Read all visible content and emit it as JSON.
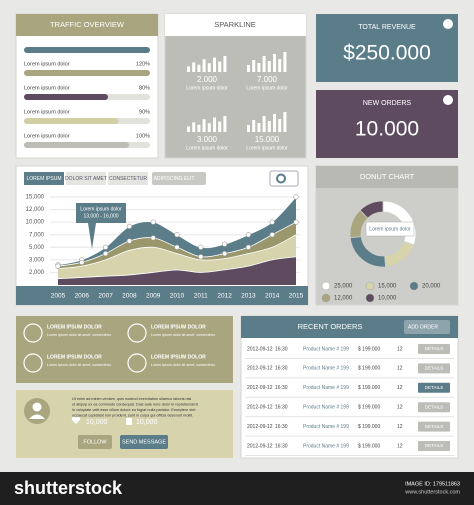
{
  "traffic_overview": {
    "title": "TRAFFIC OVERVIEW",
    "labels": [
      "Lorem ipsum dolor",
      "Lorem ipsum dolor",
      "Lorem ipsum dolor",
      "Lorem ipsum dolor"
    ],
    "values": [
      120,
      80,
      90,
      100
    ],
    "value_labels": [
      "120%",
      "80%",
      "90%",
      "100%"
    ],
    "colors": [
      "#a9a67f",
      "#5e4b60",
      "#d2cfa6",
      "#bdbdb5"
    ]
  },
  "sparkline": {
    "title": "SPARKLINE",
    "items": [
      {
        "value": "2.000",
        "label": "Lorem ipsum dolor"
      },
      {
        "value": "7.000",
        "label": "Lorem ipsum dolor"
      },
      {
        "value": "3.000",
        "label": "Lorem ipsum dolor"
      },
      {
        "value": "15.000",
        "label": "Lorem ipsum dolor"
      }
    ]
  },
  "kpis": [
    {
      "title": "TOTAL REVENUE",
      "value": "$250.000"
    },
    {
      "title": "NEW ORDERS",
      "value": "10.000"
    }
  ],
  "chart_data": [
    {
      "type": "area",
      "tabs": [
        "LOREM IPSUM",
        "DOLOR SIT AMET",
        "CONSECTETUR"
      ],
      "dropdown": "ADIPISCING ELIT",
      "x": [
        2005,
        2006,
        2007,
        2008,
        2009,
        2010,
        2011,
        2012,
        2013,
        2014,
        2015
      ],
      "xlim": [
        2005,
        2015
      ],
      "ylim": [
        1000,
        15000
      ],
      "yticks": [
        {
          "value": 2000,
          "label": "2,000"
        },
        {
          "value": 3000,
          "label": "3,000"
        },
        {
          "value": 5000,
          "label": "5,000"
        },
        {
          "value": 7000,
          "label": "7,000"
        },
        {
          "value": 10000,
          "label": "10,000"
        },
        {
          "value": 12000,
          "label": "12,000"
        },
        {
          "value": 15000,
          "label": "15,000"
        }
      ],
      "grid": true,
      "annotation": {
        "title": "Lorem ipsum dolor",
        "text": "13,000 - 16,000"
      },
      "series": [
        {
          "name": "Teal",
          "color": "#5b7c89",
          "values": [
            2600,
            3000,
            5000,
            9000,
            10000,
            7000,
            5000,
            5500,
            7000,
            10000,
            15000
          ]
        },
        {
          "name": "Olive",
          "color": "#9a976c",
          "values": [
            2500,
            2800,
            4000,
            6000,
            6500,
            5000,
            3500,
            4000,
            5000,
            7000,
            10000
          ]
        },
        {
          "name": "Beige",
          "color": "#d6d3ad",
          "values": [
            2300,
            2500,
            3000,
            4500,
            5000,
            4000,
            3000,
            3200,
            4000,
            5000,
            7000
          ]
        },
        {
          "name": "Purple",
          "color": "#5e4b60",
          "values": [
            1500,
            1600,
            1700,
            1800,
            2000,
            2200,
            2000,
            2200,
            2500,
            3000,
            3500
          ]
        }
      ]
    },
    {
      "type": "donut",
      "title": "DONUT CHART",
      "annotation": "Lorem ipsum dolor",
      "values": [
        25000,
        15000,
        20000,
        12000,
        10000
      ],
      "value_labels": [
        "25,000",
        "15,000",
        "20,000",
        "12,000",
        "10,000"
      ],
      "colors": [
        "#ffffff",
        "#d6d3ad",
        "#5b7c89",
        "#a9a67f",
        "#5e4b60"
      ]
    }
  ],
  "contacts": [
    {
      "title": "LOREM IPSUM DOLOR",
      "text": "Lorem ipsum dolor sit amet, consectetur"
    },
    {
      "title": "LOREM IPSUM DOLOR",
      "text": "Lorem ipsum dolor sit amet, consectetur"
    },
    {
      "title": "LOREM IPSUM DOLOR",
      "text": "Lorem ipsum dolor sit amet, consectetur"
    },
    {
      "title": "LOREM IPSUM DOLOR",
      "text": "Lorem ipsum dolor sit amet, consectetur"
    }
  ],
  "profile": {
    "lines": [
      "Ut enim ad minim veniam, quis nostrud exercitation ullamco laboris nisi",
      "ut aliquip ex ea commodo consequat. Duis aute irure dolor in reprehenderit",
      "in voluptate velit esse cillum dolore eu fugiat nulla pariatur. Excepteur sint",
      "occaecat cupidatat non proident, sunt in culpa qui officia deserunt mollit."
    ],
    "likes": "10,000",
    "thumbs": "10,000",
    "follow": "FOLLOW",
    "message": "SEND MESSAGE"
  },
  "recent_orders": {
    "title": "RECENT ORDERS",
    "button": "ADD ORDER",
    "rows": [
      [
        "2012-09-12",
        "16:30",
        "Product Name # 199",
        "$ 199.000",
        "12",
        "DETAILS"
      ],
      [
        "2012-09-12",
        "16:30",
        "Product Name # 199",
        "$ 199.000",
        "12",
        "DETAILS"
      ],
      [
        "2012-09-12",
        "16:30",
        "Product Name # 199",
        "$ 199.000",
        "12",
        "DETAILS"
      ],
      [
        "2012-09-12",
        "16:30",
        "Product Name # 199",
        "$ 199.000",
        "12",
        "DETAILS"
      ],
      [
        "2012-09-12",
        "16:30",
        "Product Name # 199",
        "$ 199.000",
        "12",
        "DETAILS"
      ],
      [
        "2012-09-12",
        "16:30",
        "Product Name # 199",
        "$ 199.000",
        "12",
        "DETAILS"
      ]
    ]
  },
  "footer": {
    "brand": "shutterstock",
    "image_id": "IMAGE ID: 179511863",
    "url": "www.shutterstock.com"
  }
}
